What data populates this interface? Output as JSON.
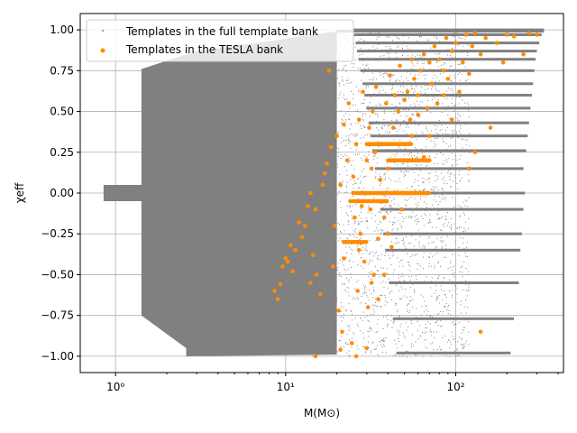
{
  "chart_data": {
    "type": "scatter",
    "title": "",
    "xlabel": "M(M⊙)",
    "ylabel": "χeff",
    "xscale": "log",
    "xlim": [
      0.62,
      430
    ],
    "ylim": [
      -1.1,
      1.1
    ],
    "grid": true,
    "legend_position": "top-left",
    "x_ticks": [
      {
        "value": 1,
        "label": "10⁰"
      },
      {
        "value": 10,
        "label": "10¹"
      },
      {
        "value": 100,
        "label": "10²"
      }
    ],
    "y_ticks": [
      {
        "value": -1.0,
        "label": "−1.00"
      },
      {
        "value": -0.75,
        "label": "−0.75"
      },
      {
        "value": -0.5,
        "label": "−0.50"
      },
      {
        "value": -0.25,
        "label": "−0.25"
      },
      {
        "value": 0.0,
        "label": "0.00"
      },
      {
        "value": 0.25,
        "label": "0.25"
      },
      {
        "value": 0.5,
        "label": "0.50"
      },
      {
        "value": 0.75,
        "label": "0.75"
      },
      {
        "value": 1.0,
        "label": "1.00"
      }
    ],
    "series": [
      {
        "name": "Templates in the full template bank",
        "color": "#808080",
        "marker": "small-dot",
        "dense_region": {
          "description_points": [
            [
              0.85,
              -0.05
            ],
            [
              0.85,
              0.05
            ],
            [
              1.42,
              0.05
            ],
            [
              1.42,
              0.76
            ],
            [
              1.52,
              0.78
            ],
            [
              1.5,
              -0.75
            ],
            [
              2.6,
              -0.95
            ],
            [
              2.6,
              -1.0
            ]
          ]
        },
        "values": [
          [
            1.42,
            0.76
          ],
          [
            3,
            0.87
          ],
          [
            6,
            0.9
          ],
          [
            10,
            0.93
          ],
          [
            14,
            0.96
          ],
          [
            18,
            0.98
          ],
          [
            1.42,
            -0.75
          ],
          [
            2.6,
            -0.95
          ],
          [
            3,
            -1.0
          ],
          [
            8,
            -1.0
          ],
          [
            14,
            -0.98
          ],
          [
            0.85,
            0.05
          ],
          [
            0.85,
            -0.05
          ],
          [
            1.42,
            0.05
          ],
          [
            1.42,
            -0.05
          ],
          [
            20,
            0.5
          ],
          [
            25,
            0.2
          ],
          [
            30,
            -0.2
          ],
          [
            22,
            -0.5
          ],
          [
            35,
            0.8
          ],
          [
            40,
            0.4
          ],
          [
            50,
            0.0
          ],
          [
            60,
            -0.3
          ],
          [
            80,
            0.5
          ],
          [
            100,
            -0.6
          ],
          [
            150,
            0.3
          ],
          [
            200,
            -0.1
          ],
          [
            250,
            -0.25
          ],
          [
            300,
            1.0
          ],
          [
            330,
            0.97
          ],
          [
            280,
            0.85
          ],
          [
            260,
            0.43
          ],
          [
            230,
            0.2
          ],
          [
            200,
            -0.35
          ],
          [
            180,
            -0.55
          ],
          [
            150,
            -0.77
          ],
          [
            130,
            -0.98
          ]
        ]
      },
      {
        "name": "Templates in the TESLA bank",
        "color": "#ff8c00",
        "marker": "dot",
        "values": [
          [
            8.6,
            -0.6
          ],
          [
            9.0,
            -0.65
          ],
          [
            9.3,
            -0.56
          ],
          [
            9.6,
            -0.45
          ],
          [
            10.0,
            -0.4
          ],
          [
            10.3,
            -0.42
          ],
          [
            10.7,
            -0.32
          ],
          [
            11.0,
            -0.48
          ],
          [
            11.4,
            -0.35
          ],
          [
            12.0,
            -0.18
          ],
          [
            12.5,
            -0.27
          ],
          [
            13.0,
            -0.2
          ],
          [
            13.5,
            -0.08
          ],
          [
            14.0,
            0.0
          ],
          [
            14.0,
            -0.55
          ],
          [
            14.5,
            -0.38
          ],
          [
            15.0,
            -0.1
          ],
          [
            15.2,
            -0.5
          ],
          [
            16.0,
            -0.62
          ],
          [
            16.5,
            0.05
          ],
          [
            17.0,
            0.12
          ],
          [
            17.5,
            0.18
          ],
          [
            18.0,
            0.75
          ],
          [
            18.5,
            0.28
          ],
          [
            19.0,
            -0.45
          ],
          [
            19.5,
            -0.2
          ],
          [
            20.0,
            0.35
          ],
          [
            20.5,
            -0.72
          ],
          [
            21.0,
            0.05
          ],
          [
            21.5,
            -0.85
          ],
          [
            22.0,
            0.42
          ],
          [
            22.5,
            -0.3
          ],
          [
            23.0,
            0.2
          ],
          [
            23.5,
            0.55
          ],
          [
            24.0,
            -0.05
          ],
          [
            24.5,
            -0.92
          ],
          [
            25.0,
            0.1
          ],
          [
            25.5,
            -0.15
          ],
          [
            26.0,
            0.3
          ],
          [
            26.5,
            -0.6
          ],
          [
            27.0,
            0.45
          ],
          [
            27.5,
            -0.25
          ],
          [
            28.0,
            -0.08
          ],
          [
            28.5,
            0.62
          ],
          [
            29.0,
            -0.42
          ],
          [
            29.5,
            0.0
          ],
          [
            30.0,
            0.2
          ],
          [
            30.5,
            -0.7
          ],
          [
            31.0,
            0.4
          ],
          [
            31.5,
            -0.1
          ],
          [
            32.0,
            0.15
          ],
          [
            32.5,
            0.5
          ],
          [
            33.0,
            -0.5
          ],
          [
            33.5,
            0.25
          ],
          [
            34.0,
            0.65
          ],
          [
            35.0,
            -0.28
          ],
          [
            36.0,
            0.08
          ],
          [
            37.0,
            0.3
          ],
          [
            38.0,
            -0.15
          ],
          [
            39.0,
            0.55
          ],
          [
            40.0,
            0.15
          ],
          [
            41.0,
            0.72
          ],
          [
            42.0,
            -0.33
          ],
          [
            43.0,
            0.4
          ],
          [
            44.0,
            0.6
          ],
          [
            45.0,
            0.2
          ],
          [
            46.0,
            0.5
          ],
          [
            47.0,
            0.78
          ],
          [
            48.0,
            0.3
          ],
          [
            50.0,
            0.57
          ],
          [
            52.0,
            0.62
          ],
          [
            54.0,
            0.45
          ],
          [
            55.0,
            0.82
          ],
          [
            57.0,
            0.7
          ],
          [
            60.0,
            0.6
          ],
          [
            62.0,
            0.75
          ],
          [
            65.0,
            0.85
          ],
          [
            68.0,
            0.52
          ],
          [
            70.0,
            0.8
          ],
          [
            72.0,
            0.67
          ],
          [
            75.0,
            0.9
          ],
          [
            78.0,
            0.55
          ],
          [
            80.0,
            0.82
          ],
          [
            85.0,
            0.75
          ],
          [
            88.0,
            0.95
          ],
          [
            90.0,
            0.7
          ],
          [
            95.0,
            0.87
          ],
          [
            100.0,
            0.92
          ],
          [
            105.0,
            0.62
          ],
          [
            110.0,
            0.8
          ],
          [
            115.0,
            0.97
          ],
          [
            120.0,
            0.73
          ],
          [
            125.0,
            0.9
          ],
          [
            130.0,
            0.98
          ],
          [
            140.0,
            0.85
          ],
          [
            150.0,
            0.95
          ],
          [
            160.0,
            0.4
          ],
          [
            175.0,
            0.92
          ],
          [
            190.0,
            0.8
          ],
          [
            200.0,
            0.97
          ],
          [
            220.0,
            0.96
          ],
          [
            250.0,
            0.85
          ],
          [
            270.0,
            0.98
          ],
          [
            300.0,
            0.97
          ],
          [
            120.0,
            0.15
          ],
          [
            130.0,
            0.25
          ],
          [
            140.0,
            -0.85
          ],
          [
            45.0,
            0.3
          ],
          [
            30.0,
            -0.95
          ],
          [
            26.0,
            -1.0
          ],
          [
            21.0,
            -0.96
          ],
          [
            15.0,
            -1.0
          ],
          [
            22.0,
            -0.4
          ],
          [
            27.0,
            -0.35
          ],
          [
            32.0,
            -0.55
          ],
          [
            35.0,
            -0.65
          ],
          [
            38.0,
            -0.5
          ],
          [
            40.0,
            -0.25
          ],
          [
            48.0,
            -0.1
          ],
          [
            55.0,
            0.35
          ],
          [
            60.0,
            0.48
          ],
          [
            65.0,
            0.22
          ],
          [
            70.0,
            0.35
          ],
          [
            85.0,
            0.6
          ],
          [
            95.0,
            0.45
          ]
        ]
      }
    ],
    "legend": [
      {
        "label": "Templates in the full template bank",
        "marker": "small-dot",
        "color": "#808080"
      },
      {
        "label": "Templates in the TESLA bank",
        "marker": "dot",
        "color": "#ff8c00"
      }
    ]
  }
}
